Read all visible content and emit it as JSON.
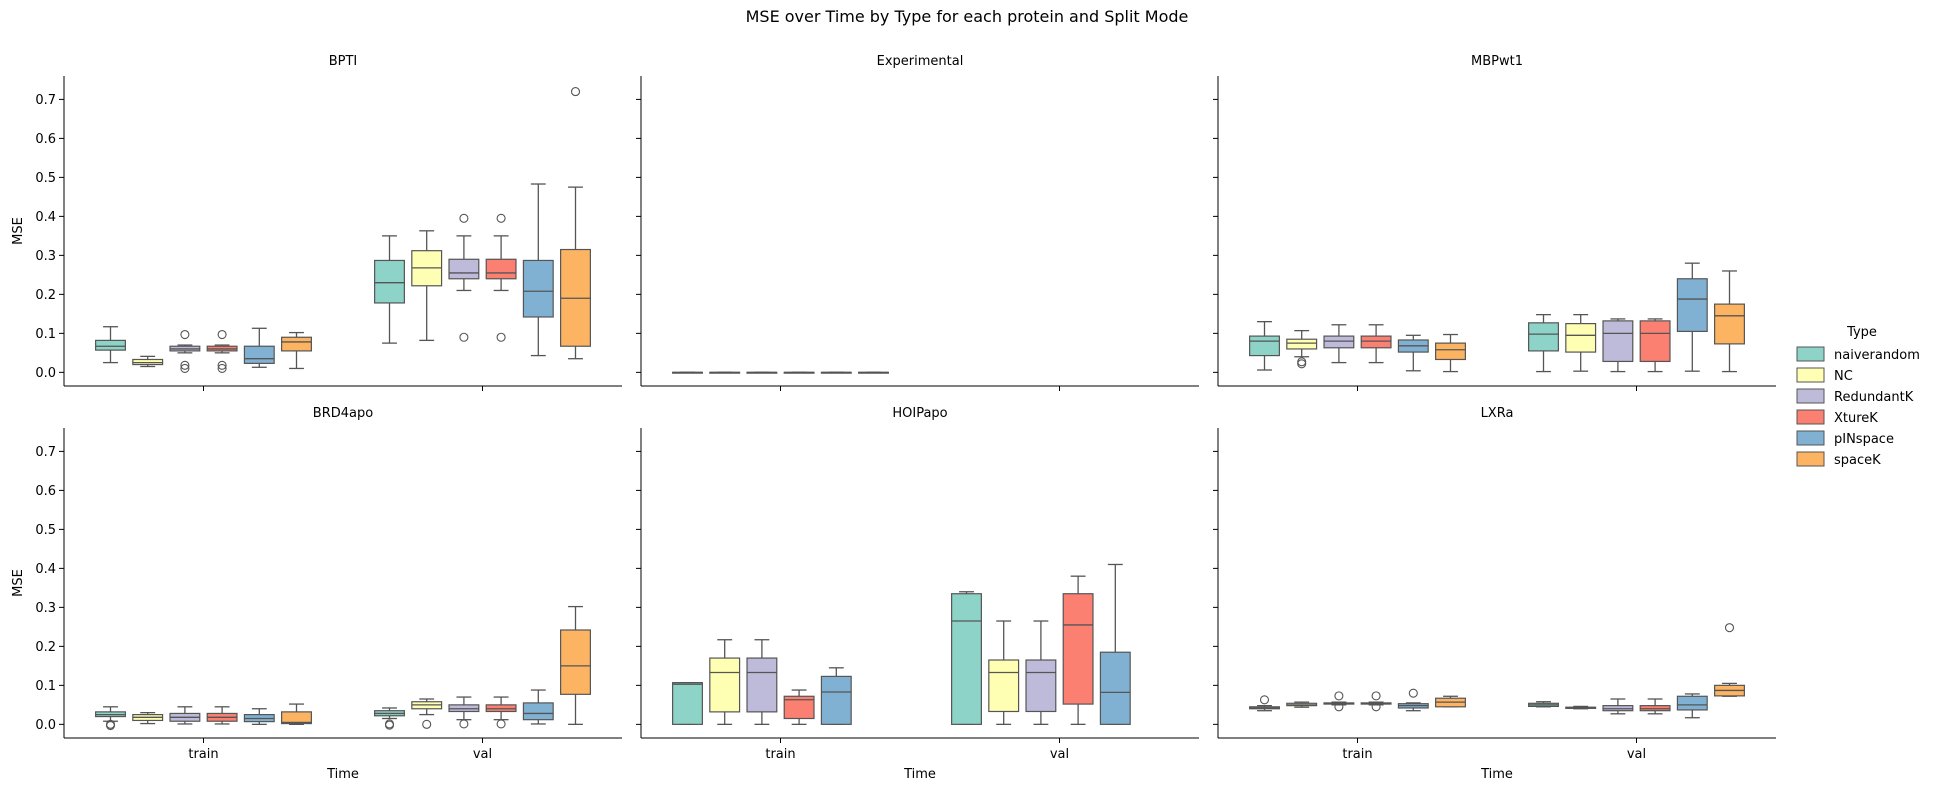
{
  "title": "MSE over Time by Type for each protein and Split Mode",
  "legend": {
    "title": "Type",
    "placement": "right"
  },
  "colors": {
    "naiverandom": "#8dd3c7",
    "NC": "#ffffb3",
    "RedundantK": "#bebada",
    "XtureK": "#fb8072",
    "pINspace": "#80b1d3",
    "spaceK": "#fdb462"
  },
  "chart_data": {
    "type": "box",
    "title": "MSE over Time by Type for each protein and Split Mode",
    "xlabel": "Time",
    "ylabel": "MSE",
    "ylim": [
      -0.035,
      0.76
    ],
    "yticks": [
      0.0,
      0.1,
      0.2,
      0.3,
      0.4,
      0.5,
      0.6,
      0.7
    ],
    "ytick_labels": [
      "0.0",
      "0.1",
      "0.2",
      "0.3",
      "0.4",
      "0.5",
      "0.6",
      "0.7"
    ],
    "categories": [
      "train",
      "val"
    ],
    "series_names": [
      "naiverandom",
      "NC",
      "RedundantK",
      "XtureK",
      "pINspace",
      "spaceK"
    ],
    "grid": false,
    "legend_placement": "right",
    "panels": [
      {
        "title": "BPTI",
        "boxes": {
          "train": [
            {
              "min": 0.025,
              "q1": 0.057,
              "med": 0.067,
              "q3": 0.082,
              "max": 0.117,
              "out": []
            },
            {
              "min": 0.015,
              "q1": 0.02,
              "med": 0.025,
              "q3": 0.033,
              "max": 0.041,
              "out": []
            },
            {
              "min": 0.05,
              "q1": 0.055,
              "med": 0.06,
              "q3": 0.067,
              "max": 0.07,
              "out": [
                0.097,
                0.018,
                0.01
              ]
            },
            {
              "min": 0.05,
              "q1": 0.055,
              "med": 0.06,
              "q3": 0.067,
              "max": 0.07,
              "out": [
                0.097,
                0.018,
                0.01
              ]
            },
            {
              "min": 0.013,
              "q1": 0.023,
              "med": 0.035,
              "q3": 0.067,
              "max": 0.113,
              "out": []
            },
            {
              "min": 0.01,
              "q1": 0.055,
              "med": 0.078,
              "q3": 0.09,
              "max": 0.102,
              "out": []
            }
          ],
          "val": [
            {
              "min": 0.075,
              "q1": 0.178,
              "med": 0.23,
              "q3": 0.287,
              "max": 0.35,
              "out": []
            },
            {
              "min": 0.082,
              "q1": 0.222,
              "med": 0.268,
              "q3": 0.312,
              "max": 0.363,
              "out": []
            },
            {
              "min": 0.21,
              "q1": 0.24,
              "med": 0.255,
              "q3": 0.29,
              "max": 0.35,
              "out": [
                0.395,
                0.09
              ]
            },
            {
              "min": 0.21,
              "q1": 0.24,
              "med": 0.255,
              "q3": 0.29,
              "max": 0.35,
              "out": [
                0.395,
                0.09
              ]
            },
            {
              "min": 0.043,
              "q1": 0.142,
              "med": 0.208,
              "q3": 0.287,
              "max": 0.483,
              "out": []
            },
            {
              "min": 0.035,
              "q1": 0.067,
              "med": 0.19,
              "q3": 0.315,
              "max": 0.475,
              "out": [
                0.72
              ]
            }
          ]
        }
      },
      {
        "title": "Experimental",
        "boxes": {
          "train": [
            {
              "min": 0.0,
              "q1": 0.0,
              "med": 0.0,
              "q3": 0.0,
              "max": 0.0,
              "out": []
            },
            {
              "min": 0.0,
              "q1": 0.0,
              "med": 0.0,
              "q3": 0.0,
              "max": 0.0,
              "out": []
            },
            {
              "min": 0.0,
              "q1": 0.0,
              "med": 0.0,
              "q3": 0.0,
              "max": 0.0,
              "out": []
            },
            {
              "min": 0.0,
              "q1": 0.0,
              "med": 0.0,
              "q3": 0.0,
              "max": 0.0,
              "out": []
            },
            {
              "min": 0.0,
              "q1": 0.0,
              "med": 0.0,
              "q3": 0.0,
              "max": 0.0,
              "out": []
            },
            {
              "min": 0.0,
              "q1": 0.0,
              "med": 0.0,
              "q3": 0.0,
              "max": 0.0,
              "out": []
            }
          ],
          "val": [
            null,
            null,
            null,
            null,
            null,
            null
          ]
        }
      },
      {
        "title": "MBPwt1",
        "boxes": {
          "train": [
            {
              "min": 0.006,
              "q1": 0.043,
              "med": 0.08,
              "q3": 0.093,
              "max": 0.13,
              "out": []
            },
            {
              "min": 0.04,
              "q1": 0.06,
              "med": 0.075,
              "q3": 0.085,
              "max": 0.107,
              "out": [
                0.027,
                0.022
              ]
            },
            {
              "min": 0.025,
              "q1": 0.063,
              "med": 0.08,
              "q3": 0.093,
              "max": 0.122,
              "out": []
            },
            {
              "min": 0.025,
              "q1": 0.063,
              "med": 0.08,
              "q3": 0.093,
              "max": 0.122,
              "out": []
            },
            {
              "min": 0.004,
              "q1": 0.052,
              "med": 0.068,
              "q3": 0.083,
              "max": 0.095,
              "out": []
            },
            {
              "min": 0.002,
              "q1": 0.033,
              "med": 0.058,
              "q3": 0.075,
              "max": 0.097,
              "out": []
            }
          ],
          "val": [
            {
              "min": 0.002,
              "q1": 0.055,
              "med": 0.098,
              "q3": 0.127,
              "max": 0.148,
              "out": []
            },
            {
              "min": 0.003,
              "q1": 0.052,
              "med": 0.095,
              "q3": 0.125,
              "max": 0.148,
              "out": []
            },
            {
              "min": 0.002,
              "q1": 0.028,
              "med": 0.1,
              "q3": 0.132,
              "max": 0.137,
              "out": []
            },
            {
              "min": 0.002,
              "q1": 0.028,
              "med": 0.1,
              "q3": 0.132,
              "max": 0.137,
              "out": []
            },
            {
              "min": 0.003,
              "q1": 0.105,
              "med": 0.188,
              "q3": 0.24,
              "max": 0.28,
              "out": []
            },
            {
              "min": 0.002,
              "q1": 0.073,
              "med": 0.145,
              "q3": 0.175,
              "max": 0.26,
              "out": []
            }
          ]
        }
      },
      {
        "title": "BRD4apo",
        "boxes": {
          "train": [
            {
              "min": 0.008,
              "q1": 0.02,
              "med": 0.025,
              "q3": 0.032,
              "max": 0.045,
              "out": [
                0.0,
                -0.003
              ]
            },
            {
              "min": 0.002,
              "q1": 0.01,
              "med": 0.018,
              "q3": 0.025,
              "max": 0.03,
              "out": []
            },
            {
              "min": 0.001,
              "q1": 0.008,
              "med": 0.018,
              "q3": 0.028,
              "max": 0.045,
              "out": []
            },
            {
              "min": 0.001,
              "q1": 0.008,
              "med": 0.018,
              "q3": 0.028,
              "max": 0.045,
              "out": []
            },
            {
              "min": 0.0,
              "q1": 0.007,
              "med": 0.015,
              "q3": 0.025,
              "max": 0.04,
              "out": []
            },
            {
              "min": 0.0,
              "q1": 0.002,
              "med": 0.005,
              "q3": 0.032,
              "max": 0.052,
              "out": []
            }
          ],
          "val": [
            {
              "min": 0.015,
              "q1": 0.022,
              "med": 0.028,
              "q3": 0.035,
              "max": 0.042,
              "out": [
                0.001,
                -0.002
              ]
            },
            {
              "min": 0.025,
              "q1": 0.04,
              "med": 0.05,
              "q3": 0.058,
              "max": 0.065,
              "out": [
                0.0
              ]
            },
            {
              "min": 0.012,
              "q1": 0.033,
              "med": 0.04,
              "q3": 0.05,
              "max": 0.07,
              "out": [
                0.001
              ]
            },
            {
              "min": 0.012,
              "q1": 0.033,
              "med": 0.04,
              "q3": 0.05,
              "max": 0.07,
              "out": [
                0.001
              ]
            },
            {
              "min": 0.001,
              "q1": 0.012,
              "med": 0.028,
              "q3": 0.055,
              "max": 0.088,
              "out": []
            },
            {
              "min": 0.0,
              "q1": 0.077,
              "med": 0.15,
              "q3": 0.242,
              "max": 0.302,
              "out": []
            }
          ]
        }
      },
      {
        "title": "HOIPapo",
        "boxes": {
          "train": [
            {
              "min": 0.0,
              "q1": 0.0,
              "med": 0.103,
              "q3": 0.107,
              "max": 0.107,
              "out": []
            },
            {
              "min": 0.0,
              "q1": 0.032,
              "med": 0.133,
              "q3": 0.17,
              "max": 0.217,
              "out": []
            },
            {
              "min": 0.0,
              "q1": 0.032,
              "med": 0.133,
              "q3": 0.17,
              "max": 0.217,
              "out": []
            },
            {
              "min": 0.0,
              "q1": 0.015,
              "med": 0.063,
              "q3": 0.072,
              "max": 0.088,
              "out": []
            },
            {
              "min": 0.0,
              "q1": 0.0,
              "med": 0.083,
              "q3": 0.123,
              "max": 0.145,
              "out": []
            },
            null
          ],
          "val": [
            {
              "min": 0.0,
              "q1": 0.0,
              "med": 0.265,
              "q3": 0.335,
              "max": 0.34,
              "out": []
            },
            {
              "min": 0.0,
              "q1": 0.033,
              "med": 0.133,
              "q3": 0.165,
              "max": 0.265,
              "out": []
            },
            {
              "min": 0.0,
              "q1": 0.033,
              "med": 0.133,
              "q3": 0.165,
              "max": 0.265,
              "out": []
            },
            {
              "min": 0.0,
              "q1": 0.052,
              "med": 0.255,
              "q3": 0.335,
              "max": 0.38,
              "out": []
            },
            {
              "min": 0.0,
              "q1": 0.0,
              "med": 0.082,
              "q3": 0.185,
              "max": 0.41,
              "out": []
            },
            null
          ]
        }
      },
      {
        "title": "LXRa",
        "boxes": {
          "train": [
            {
              "min": 0.035,
              "q1": 0.04,
              "med": 0.042,
              "q3": 0.045,
              "max": 0.048,
              "out": [
                0.063
              ]
            },
            {
              "min": 0.044,
              "q1": 0.048,
              "med": 0.05,
              "q3": 0.054,
              "max": 0.057,
              "out": []
            },
            {
              "min": 0.05,
              "q1": 0.052,
              "med": 0.053,
              "q3": 0.055,
              "max": 0.057,
              "out": [
                0.073,
                0.045
              ]
            },
            {
              "min": 0.05,
              "q1": 0.052,
              "med": 0.053,
              "q3": 0.055,
              "max": 0.057,
              "out": [
                0.073,
                0.045
              ]
            },
            {
              "min": 0.035,
              "q1": 0.042,
              "med": 0.048,
              "q3": 0.053,
              "max": 0.055,
              "out": [
                0.08
              ]
            },
            {
              "min": 0.045,
              "q1": 0.045,
              "med": 0.057,
              "q3": 0.067,
              "max": 0.072,
              "out": []
            }
          ],
          "val": [
            {
              "min": 0.045,
              "q1": 0.046,
              "med": 0.05,
              "q3": 0.054,
              "max": 0.058,
              "out": []
            },
            {
              "min": 0.04,
              "q1": 0.041,
              "med": 0.042,
              "q3": 0.044,
              "max": 0.046,
              "out": []
            },
            {
              "min": 0.027,
              "q1": 0.035,
              "med": 0.04,
              "q3": 0.048,
              "max": 0.065,
              "out": []
            },
            {
              "min": 0.027,
              "q1": 0.035,
              "med": 0.04,
              "q3": 0.048,
              "max": 0.065,
              "out": []
            },
            {
              "min": 0.017,
              "q1": 0.037,
              "med": 0.05,
              "q3": 0.072,
              "max": 0.078,
              "out": []
            },
            {
              "min": 0.072,
              "q1": 0.073,
              "med": 0.087,
              "q3": 0.1,
              "max": 0.105,
              "out": [
                0.248
              ]
            }
          ]
        }
      }
    ]
  }
}
